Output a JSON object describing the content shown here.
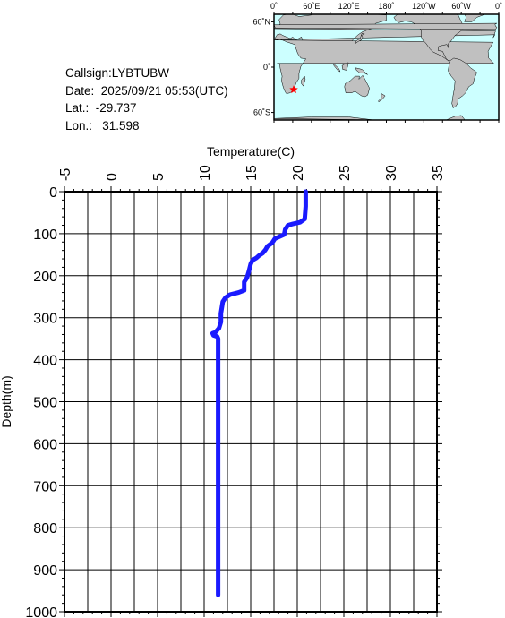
{
  "station": {
    "callsign": "Callsign:LYBTUBW",
    "date": "Date:  2025/09/21 05:53(UTC)",
    "lat": "Lat.:  -29.737",
    "lon": "Lon.:   31.598"
  },
  "map": {
    "top_labels": [
      "0˚",
      "60˚E",
      "120˚E",
      "180˚",
      "120˚W",
      "60˚W",
      "0˚"
    ],
    "left_labels": [
      "60˚N",
      "0˚",
      "60˚S"
    ],
    "ocean_color": "#ccffff",
    "land_color": "#c0c0c0",
    "marker_color": "#ff0000",
    "marker": {
      "lat": -29.737,
      "lon": 31.598
    }
  },
  "chart_data": {
    "type": "line",
    "title": "",
    "xlabel": "Temperature(C)",
    "ylabel": "Depth(m)",
    "xlim": [
      -5,
      35
    ],
    "ylim": [
      0,
      1000
    ],
    "y_inverted": true,
    "x_ticks": [
      "-5",
      "0",
      "5",
      "10",
      "15",
      "20",
      "25",
      "30",
      "35"
    ],
    "y_ticks": [
      "0",
      "100",
      "200",
      "300",
      "400",
      "500",
      "600",
      "700",
      "800",
      "900",
      "1000"
    ],
    "grid": true,
    "series": [
      {
        "color": "#1a1aff",
        "points": [
          [
            20.9,
            0
          ],
          [
            20.9,
            35
          ],
          [
            20.8,
            65
          ],
          [
            20.3,
            73
          ],
          [
            19.5,
            77
          ],
          [
            19.0,
            80
          ],
          [
            18.7,
            90
          ],
          [
            18.6,
            102
          ],
          [
            17.6,
            112
          ],
          [
            17.3,
            122
          ],
          [
            16.8,
            130
          ],
          [
            16.6,
            138
          ],
          [
            16.3,
            146
          ],
          [
            15.9,
            152
          ],
          [
            15.6,
            158
          ],
          [
            15.2,
            163
          ],
          [
            15.0,
            172
          ],
          [
            14.8,
            190
          ],
          [
            14.6,
            205
          ],
          [
            14.3,
            215
          ],
          [
            14.3,
            235
          ],
          [
            13.7,
            240
          ],
          [
            12.8,
            245
          ],
          [
            12.3,
            252
          ],
          [
            12.0,
            262
          ],
          [
            11.8,
            290
          ],
          [
            11.8,
            310
          ],
          [
            11.6,
            325
          ],
          [
            11.2,
            335
          ],
          [
            10.9,
            337
          ],
          [
            11.0,
            342
          ],
          [
            11.4,
            345
          ],
          [
            11.5,
            350
          ],
          [
            11.5,
            960
          ]
        ]
      }
    ]
  }
}
